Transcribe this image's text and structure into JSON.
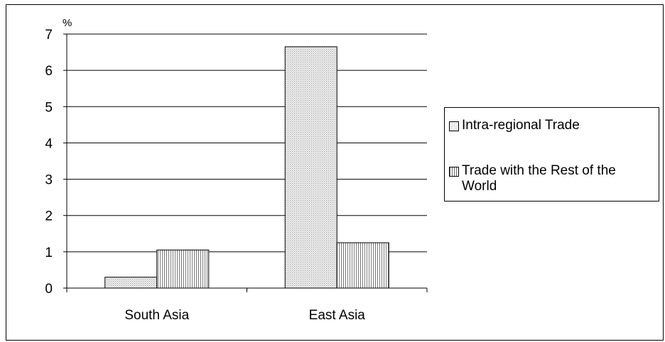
{
  "chart_data": {
    "type": "bar",
    "categories": [
      "South Asia",
      "East Asia"
    ],
    "series": [
      {
        "name": "Intra-regional Trade",
        "values": [
          0.3,
          6.65
        ]
      },
      {
        "name": "Trade with the Rest of the World",
        "values": [
          1.05,
          1.25
        ]
      }
    ],
    "ylabel": "%",
    "ylim": [
      0,
      7
    ],
    "yticks": [
      "0",
      "1",
      "2",
      "3",
      "4",
      "5",
      "6",
      "7"
    ],
    "grid": true,
    "legend_position": "right"
  },
  "colors": {
    "series_0": "#e8e8e8",
    "series_1": "#c8c8c8",
    "bar_border": "#000000"
  }
}
